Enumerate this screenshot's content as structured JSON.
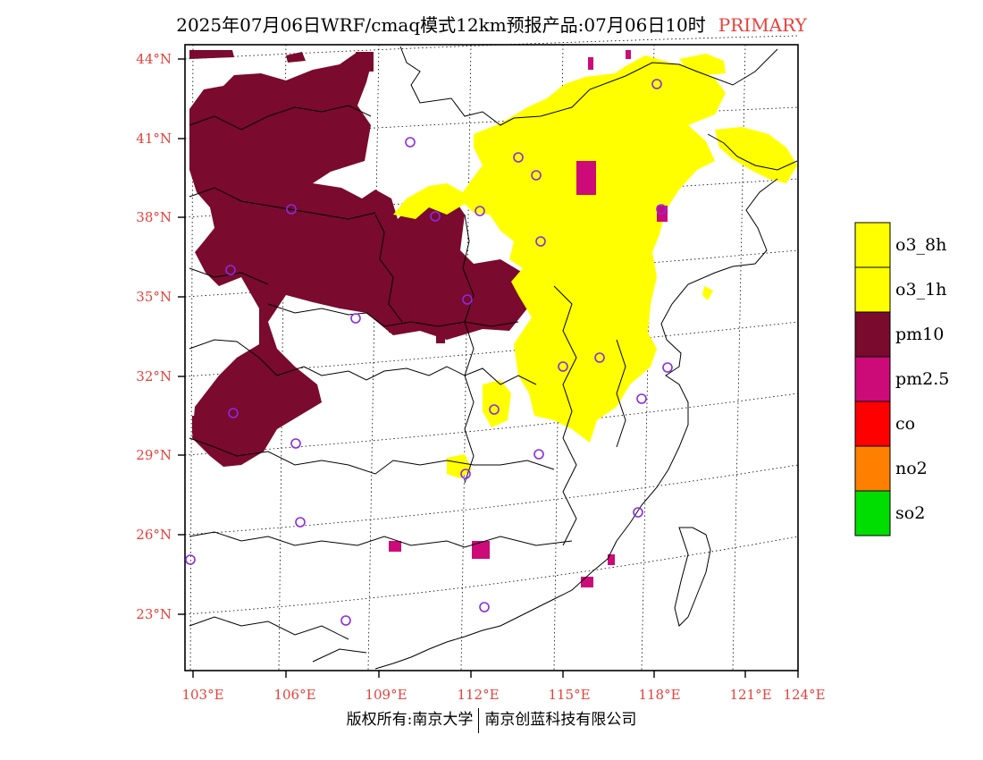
{
  "title": {
    "main": "2025年07月06日WRF/cmaq模式12km预报产品:07月06日10时",
    "tag": "PRIMARY"
  },
  "axes": {
    "lat_labels": [
      "44°N",
      "41°N",
      "38°N",
      "35°N",
      "32°N",
      "29°N",
      "26°N",
      "23°N"
    ],
    "lon_labels": [
      "103°E",
      "106°E",
      "109°E",
      "112°E",
      "115°E",
      "118°E",
      "121°E",
      "124°E"
    ]
  },
  "legend": {
    "items": [
      {
        "label": "o3_8h",
        "color": "#ffff00"
      },
      {
        "label": "o3_1h",
        "color": "#ffff00"
      },
      {
        "label": "pm10",
        "color": "#7a0a2e"
      },
      {
        "label": "pm2.5",
        "color": "#cc0a78"
      },
      {
        "label": "co",
        "color": "#ff0000"
      },
      {
        "label": "no2",
        "color": "#ff7f00"
      },
      {
        "label": "so2",
        "color": "#00dd00"
      }
    ]
  },
  "colors": {
    "o3": "#ffff00",
    "pm10": "#7a0a2e",
    "pm25": "#cc0a78",
    "station_marker": "#8a2be2",
    "axis_label": "#e8403a"
  },
  "footer": {
    "left": "版权所有:南京大学",
    "right": "南京创蓝科技有限公司"
  }
}
